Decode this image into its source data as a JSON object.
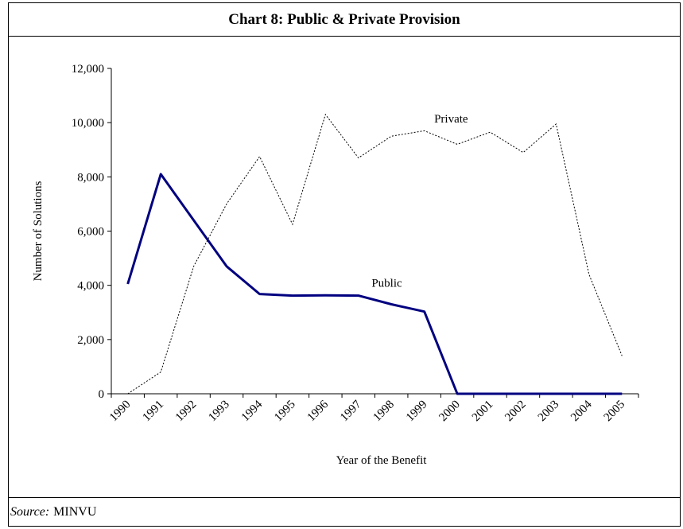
{
  "title": "Chart 8: Public & Private Provision",
  "source": {
    "label": "Source:",
    "text": "MINVU"
  },
  "chart_data": {
    "type": "line",
    "x": [
      "1990",
      "1991",
      "1992",
      "1993",
      "1994",
      "1995",
      "1996",
      "1997",
      "1998",
      "1999",
      "2000",
      "2001",
      "2002",
      "2003",
      "2004",
      "2005"
    ],
    "series": [
      {
        "name": "Public",
        "style": "solid",
        "color": "#000080",
        "values": [
          4050,
          8100,
          6400,
          4700,
          3680,
          3620,
          3630,
          3620,
          3300,
          3030,
          0,
          0,
          0,
          0,
          0,
          0
        ]
      },
      {
        "name": "Private",
        "style": "dotted",
        "color": "#000000",
        "values": [
          0,
          800,
          4700,
          7000,
          8750,
          6250,
          10300,
          8700,
          9500,
          9700,
          9200,
          9650,
          8900,
          9950,
          4400,
          1400
        ]
      }
    ],
    "xlabel": "Year of the Benefit",
    "ylabel": "Number of Solutions",
    "ylim": [
      0,
      12000
    ],
    "yticks": [
      "0",
      "2,000",
      "4,000",
      "6,000",
      "8,000",
      "10,000",
      "12,000"
    ],
    "grid": false,
    "legend": "inline labels"
  }
}
